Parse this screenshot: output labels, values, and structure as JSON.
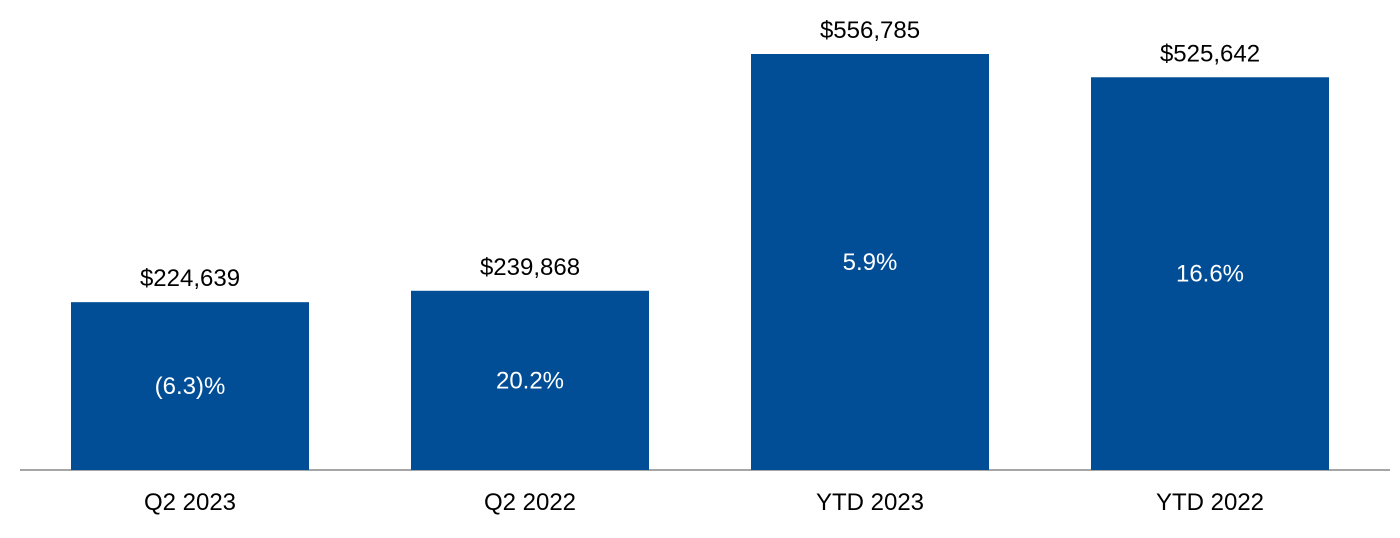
{
  "chart_data": {
    "type": "bar",
    "categories": [
      "Q2 2023",
      "Q2 2022",
      "YTD 2023",
      "YTD 2022"
    ],
    "values": [
      224639,
      239868,
      556785,
      525642
    ],
    "value_labels": [
      "$224,639",
      "$239,868",
      "$556,785",
      "$525,642"
    ],
    "growth_labels": [
      "(6.3)%",
      "20.2%",
      "5.9%",
      "16.6%"
    ],
    "ylim": [
      0,
      600000
    ],
    "grid": false,
    "bar_color": "#024e96",
    "axis_color": "#a6a6a6"
  }
}
